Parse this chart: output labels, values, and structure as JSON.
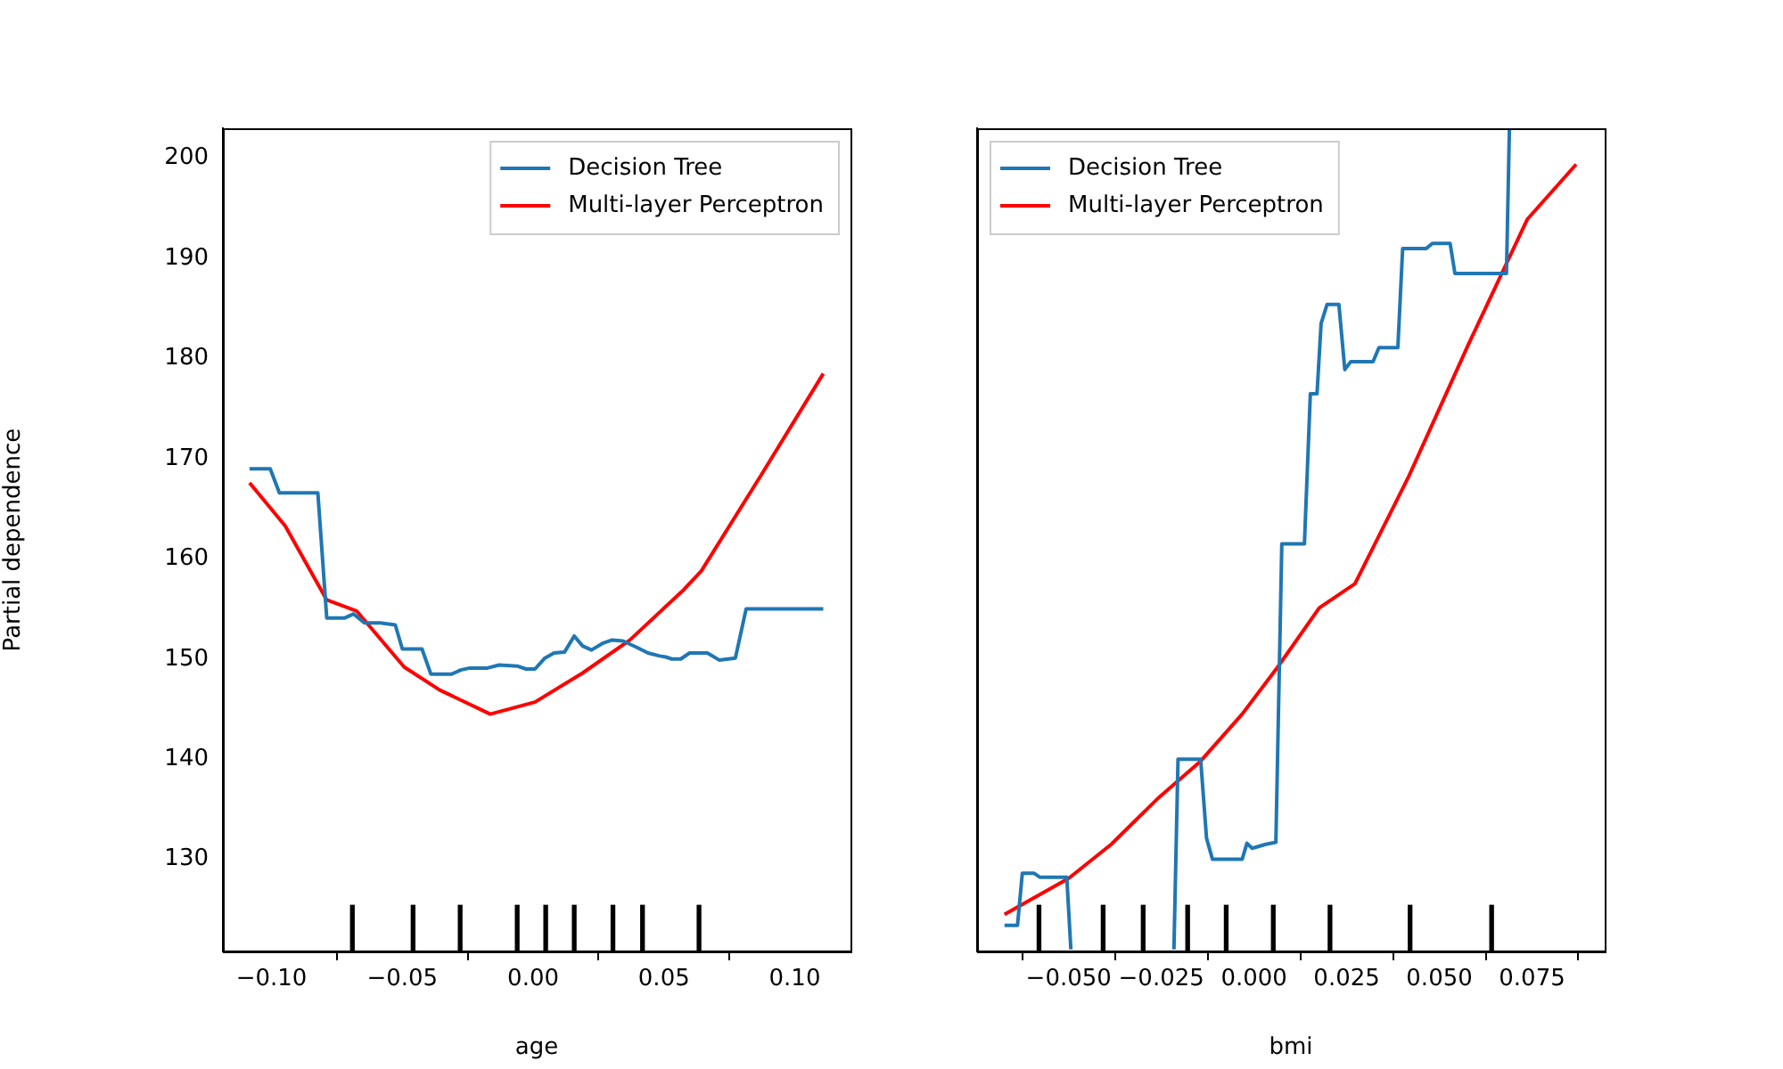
{
  "chart_data": [
    {
      "type": "line",
      "xlabel": "age",
      "ylabel": "Partial dependence",
      "legend": "top right",
      "xlim": [
        -0.1186,
        0.1213
      ],
      "ylim": [
        120.8,
        203.0
      ],
      "xticks": [
        {
          "value": -0.1,
          "label": "−0.10"
        },
        {
          "value": -0.05,
          "label": "−0.05"
        },
        {
          "value": 0,
          "label": "0.00"
        },
        {
          "value": 0.05,
          "label": "0.05"
        },
        {
          "value": 0.1,
          "label": "0.10"
        }
      ],
      "yticks": [
        130,
        140,
        150,
        160,
        170,
        180,
        190,
        200
      ],
      "series": [
        {
          "name": "Decision Tree",
          "color": "#1f77b4",
          "x": [
            -0.1084,
            -0.1005,
            -0.097,
            -0.0823,
            -0.0789,
            -0.072,
            -0.0686,
            -0.0645,
            -0.0584,
            -0.0527,
            -0.05,
            -0.0425,
            -0.0391,
            -0.0311,
            -0.0277,
            -0.0243,
            -0.0175,
            -0.013,
            -0.0061,
            -0.0027,
            0.0007,
            0.0045,
            0.008,
            0.012,
            0.0157,
            0.0189,
            0.0223,
            0.0268,
            0.0302,
            0.0343,
            0.0393,
            0.0439,
            0.0484,
            0.0507,
            0.053,
            0.0564,
            0.0598,
            0.0666,
            0.0711,
            0.0773,
            0.0814,
            0.1109
          ],
          "values": [
            169.0,
            169.0,
            166.6,
            166.6,
            154.1,
            154.1,
            154.5,
            153.6,
            153.6,
            153.4,
            151.0,
            151.0,
            148.5,
            148.5,
            148.9,
            149.1,
            149.1,
            149.4,
            149.3,
            149.0,
            149.0,
            150.1,
            150.6,
            150.7,
            152.3,
            151.3,
            150.9,
            151.6,
            151.9,
            151.8,
            151.2,
            150.6,
            150.3,
            150.2,
            150.0,
            150.0,
            150.6,
            150.6,
            149.9,
            150.1,
            155.0,
            155.0
          ]
        },
        {
          "name": "Multi-layer Perceptron",
          "color": "#ff0000",
          "x": [
            -0.1084,
            -0.0948,
            -0.0789,
            -0.0675,
            -0.0493,
            -0.0357,
            -0.0164,
            0.0007,
            0.0189,
            0.037,
            0.0575,
            0.0643,
            0.087,
            0.1109
          ],
          "values": [
            167.6,
            163.3,
            155.9,
            154.8,
            149.2,
            146.9,
            144.5,
            145.7,
            148.6,
            151.9,
            156.9,
            158.8,
            168.3,
            178.5
          ]
        },
        {
          "type": "bar",
          "color": "#000000",
          "x": [
            -0.0691,
            -0.0459,
            -0.0279,
            -0.0061,
            0.0048,
            0.0157,
            0.0305,
            0.0418,
            0.0634
          ],
          "values": [
            4.6,
            4.6,
            4.6,
            4.6,
            4.6,
            4.6,
            4.6,
            4.6,
            4.6
          ],
          "base": [
            120.8,
            120.8,
            120.8,
            120.8,
            120.8,
            120.8,
            120.8,
            120.8,
            120.8
          ]
        }
      ]
    },
    {
      "type": "line",
      "xlabel": "bmi",
      "legend": "top left",
      "tick_labels": "x",
      "xlim": [
        -0.0747,
        0.0946
      ],
      "ylim": [
        120.8,
        203.0
      ],
      "xticks": [
        {
          "value": -0.05,
          "label": "−0.050"
        },
        {
          "value": -0.025,
          "label": "−0.025"
        },
        {
          "value": 0,
          "label": "0.000"
        },
        {
          "value": 0.025,
          "label": "0.025"
        },
        {
          "value": 0.05,
          "label": "0.050"
        },
        {
          "value": 0.075,
          "label": "0.075"
        }
      ],
      "yticks": [
        130,
        140,
        150,
        160,
        170,
        180,
        190,
        200
      ],
      "series": [
        {
          "name": "Decision Tree",
          "color": "#1f77b4",
          "x": [
            -0.0673,
            -0.0638,
            -0.0625,
            -0.0593,
            -0.0577,
            -0.0505,
            -0.0494,
            -0.035,
            -0.0216,
            -0.0205,
            -0.0144,
            -0.0128,
            -0.0112,
            -0.0032,
            -0.0019,
            -0.0005,
            0.0032,
            0.0059,
            0.0075,
            0.0136,
            0.0152,
            0.017,
            0.0181,
            0.0197,
            0.0229,
            0.0245,
            0.0261,
            0.0321,
            0.0337,
            0.0388,
            0.0401,
            0.0465,
            0.0481,
            0.0529,
            0.0542,
            0.0681,
            0.0689
          ],
          "values": [
            123.4,
            123.4,
            128.6,
            128.6,
            128.2,
            128.2,
            121.0,
            null,
            121.0,
            140.0,
            140.0,
            132.1,
            130.0,
            130.0,
            131.6,
            131.1,
            131.5,
            131.7,
            161.5,
            161.5,
            176.5,
            176.5,
            183.5,
            185.4,
            185.4,
            178.9,
            179.7,
            179.7,
            181.1,
            181.1,
            191.0,
            191.0,
            191.5,
            191.5,
            188.5,
            188.5,
            203.0
          ]
        },
        {
          "name": "Multi-layer Perceptron",
          "color": "#ff0000",
          "x": [
            -0.0673,
            -0.05,
            -0.0385,
            -0.0256,
            -0.0144,
            -0.0032,
            0.0064,
            0.0176,
            0.0272,
            0.0417,
            0.0577,
            0.0737,
            0.0869
          ],
          "values": [
            124.5,
            128.1,
            131.5,
            136.2,
            139.8,
            144.5,
            149.2,
            155.1,
            157.5,
            168.2,
            181.3,
            193.9,
            199.4
          ]
        },
        {
          "type": "bar",
          "color": "#000000",
          "x": [
            -0.058,
            -0.0407,
            -0.0299,
            -0.0179,
            -0.0075,
            0.0052,
            0.0205,
            0.0421,
            0.0641
          ],
          "values": [
            4.6,
            4.6,
            4.6,
            4.6,
            4.6,
            4.6,
            4.6,
            4.6,
            4.6
          ],
          "base": [
            120.8,
            120.8,
            120.8,
            120.8,
            120.8,
            120.8,
            120.8,
            120.8,
            120.8
          ]
        }
      ]
    }
  ]
}
